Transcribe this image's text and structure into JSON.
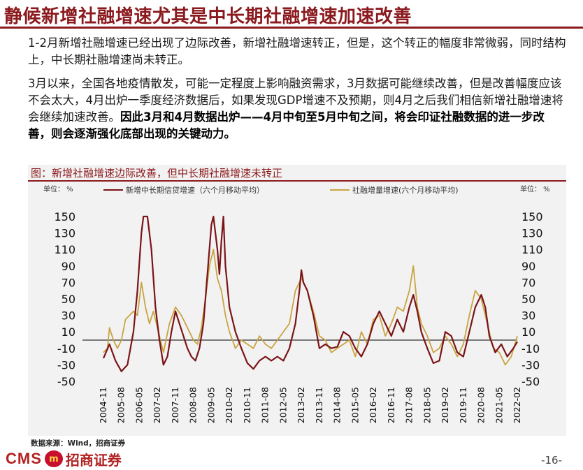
{
  "slide": {
    "title": "静候新增社融增速尤其是中长期社融增速加速改善",
    "para1": "1-2月新增社融增速已经出现了边际改善，新增社融增速转正，但是，这个转正的幅度非常微弱，同时结构上，中长期社融增速尚未转正。",
    "para2_normal": "3月以来，全国各地疫情散发，可能一定程度上影响融资需求，3月数据可能继续改善，但是改善幅度应该不会太大，4月出炉一季度经济数据后，如果发现GDP增速不及预期，则4月之后我们相信新增社融增速将会继续加速改善。",
    "para2_bold": "因此3月和4月数据出炉——4月中旬至5月中旬之间，将会印证社融数据的进一步改善，则会逐渐强化底部出现的关键动力。",
    "chart_caption": "图：新增社融增速边际改善，但中长期社融增速未转正",
    "source": "数据来源：Wind，招商证券",
    "logo_cms": "CMS",
    "logo_badge": "m",
    "logo_cn": "招商证券",
    "page_number": "-16-"
  },
  "chart_data": {
    "type": "line",
    "unit_left": "单位： %",
    "unit_right": "单位： %",
    "ylim": [
      -50,
      150
    ],
    "yticks": [
      -50,
      -30,
      -10,
      10,
      30,
      50,
      70,
      90,
      110,
      130,
      150
    ],
    "xlim": [
      "2004-11",
      "2022-02"
    ],
    "xticks": [
      "2004-11",
      "2005-08",
      "2006-05",
      "2007-02",
      "2007-11",
      "2008-08",
      "2009-05",
      "2010-02",
      "2010-11",
      "2011-08",
      "2012-05",
      "2013-02",
      "2013-11",
      "2014-08",
      "2015-05",
      "2016-02",
      "2016-11",
      "2017-08",
      "2018-05",
      "2019-02",
      "2019-11",
      "2020-08",
      "2021-05",
      "2022-02"
    ],
    "zero_line": true,
    "colors": {
      "series1": "#7b1418",
      "series2": "#c9a441",
      "zero": "#000000"
    },
    "series": [
      {
        "name": "新增中长期信贷增速（六个月移动平均）",
        "points": [
          [
            "2004-11",
            -22
          ],
          [
            "2005-02",
            -5
          ],
          [
            "2005-05",
            -25
          ],
          [
            "2005-08",
            -38
          ],
          [
            "2005-11",
            -30
          ],
          [
            "2006-02",
            10
          ],
          [
            "2006-04",
            60
          ],
          [
            "2006-06",
            130
          ],
          [
            "2006-07",
            150
          ],
          [
            "2006-09",
            150
          ],
          [
            "2006-11",
            110
          ],
          [
            "2007-01",
            40
          ],
          [
            "2007-03",
            0
          ],
          [
            "2007-05",
            -30
          ],
          [
            "2007-07",
            -20
          ],
          [
            "2007-09",
            10
          ],
          [
            "2007-11",
            35
          ],
          [
            "2008-01",
            20
          ],
          [
            "2008-03",
            5
          ],
          [
            "2008-05",
            -10
          ],
          [
            "2008-07",
            -20
          ],
          [
            "2008-09",
            -25
          ],
          [
            "2008-11",
            -10
          ],
          [
            "2009-01",
            20
          ],
          [
            "2009-03",
            80
          ],
          [
            "2009-05",
            140
          ],
          [
            "2009-06",
            150
          ],
          [
            "2009-08",
            110
          ],
          [
            "2009-09",
            80
          ],
          [
            "2009-10",
            120
          ],
          [
            "2009-11",
            150
          ],
          [
            "2009-12",
            90
          ],
          [
            "2010-02",
            40
          ],
          [
            "2010-05",
            10
          ],
          [
            "2010-08",
            -10
          ],
          [
            "2010-11",
            -28
          ],
          [
            "2011-02",
            -35
          ],
          [
            "2011-05",
            -25
          ],
          [
            "2011-08",
            -20
          ],
          [
            "2011-11",
            -25
          ],
          [
            "2012-02",
            -20
          ],
          [
            "2012-05",
            -25
          ],
          [
            "2012-08",
            -10
          ],
          [
            "2012-11",
            20
          ],
          [
            "2013-01",
            60
          ],
          [
            "2013-02",
            85
          ],
          [
            "2013-03",
            70
          ],
          [
            "2013-05",
            60
          ],
          [
            "2013-08",
            30
          ],
          [
            "2013-11",
            -10
          ],
          [
            "2014-02",
            -5
          ],
          [
            "2014-05",
            -10
          ],
          [
            "2014-08",
            -8
          ],
          [
            "2014-11",
            10
          ],
          [
            "2015-02",
            5
          ],
          [
            "2015-05",
            -10
          ],
          [
            "2015-08",
            -20
          ],
          [
            "2015-11",
            -5
          ],
          [
            "2016-02",
            20
          ],
          [
            "2016-05",
            35
          ],
          [
            "2016-08",
            20
          ],
          [
            "2016-11",
            5
          ],
          [
            "2017-02",
            25
          ],
          [
            "2017-05",
            10
          ],
          [
            "2017-08",
            40
          ],
          [
            "2017-10",
            55
          ],
          [
            "2017-12",
            35
          ],
          [
            "2018-02",
            10
          ],
          [
            "2018-05",
            -10
          ],
          [
            "2018-08",
            -28
          ],
          [
            "2018-11",
            -25
          ],
          [
            "2019-02",
            10
          ],
          [
            "2019-05",
            5
          ],
          [
            "2019-08",
            -15
          ],
          [
            "2019-11",
            -20
          ],
          [
            "2020-02",
            10
          ],
          [
            "2020-05",
            40
          ],
          [
            "2020-08",
            55
          ],
          [
            "2020-10",
            40
          ],
          [
            "2020-12",
            5
          ],
          [
            "2021-03",
            -15
          ],
          [
            "2021-06",
            -5
          ],
          [
            "2021-09",
            -20
          ],
          [
            "2021-12",
            -10
          ],
          [
            "2022-02",
            -2
          ]
        ]
      },
      {
        "name": "社融增量增速(六个月移动平均)",
        "points": [
          [
            "2004-11",
            -15
          ],
          [
            "2005-01",
            -10
          ],
          [
            "2005-02",
            15
          ],
          [
            "2005-04",
            0
          ],
          [
            "2005-06",
            -10
          ],
          [
            "2005-08",
            0
          ],
          [
            "2005-10",
            25
          ],
          [
            "2005-12",
            30
          ],
          [
            "2006-02",
            35
          ],
          [
            "2006-04",
            30
          ],
          [
            "2006-06",
            70
          ],
          [
            "2006-08",
            40
          ],
          [
            "2006-10",
            20
          ],
          [
            "2006-12",
            35
          ],
          [
            "2007-02",
            15
          ],
          [
            "2007-05",
            -15
          ],
          [
            "2007-08",
            20
          ],
          [
            "2007-11",
            40
          ],
          [
            "2008-02",
            30
          ],
          [
            "2008-05",
            15
          ],
          [
            "2008-08",
            0
          ],
          [
            "2008-10",
            -5
          ],
          [
            "2008-12",
            15
          ],
          [
            "2009-02",
            50
          ],
          [
            "2009-04",
            90
          ],
          [
            "2009-06",
            110
          ],
          [
            "2009-08",
            75
          ],
          [
            "2009-10",
            60
          ],
          [
            "2009-12",
            30
          ],
          [
            "2010-02",
            10
          ],
          [
            "2010-05",
            -10
          ],
          [
            "2010-08",
            0
          ],
          [
            "2010-11",
            -5
          ],
          [
            "2011-02",
            -10
          ],
          [
            "2011-05",
            5
          ],
          [
            "2011-08",
            -5
          ],
          [
            "2011-11",
            -10
          ],
          [
            "2012-02",
            0
          ],
          [
            "2012-05",
            10
          ],
          [
            "2012-08",
            20
          ],
          [
            "2012-11",
            60
          ],
          [
            "2013-02",
            75
          ],
          [
            "2013-05",
            60
          ],
          [
            "2013-08",
            35
          ],
          [
            "2013-11",
            5
          ],
          [
            "2014-02",
            0
          ],
          [
            "2014-05",
            -15
          ],
          [
            "2014-08",
            -10
          ],
          [
            "2014-11",
            -5
          ],
          [
            "2015-02",
            0
          ],
          [
            "2015-05",
            -20
          ],
          [
            "2015-08",
            10
          ],
          [
            "2015-11",
            -5
          ],
          [
            "2016-02",
            25
          ],
          [
            "2016-05",
            30
          ],
          [
            "2016-08",
            5
          ],
          [
            "2016-11",
            20
          ],
          [
            "2017-02",
            40
          ],
          [
            "2017-05",
            35
          ],
          [
            "2017-08",
            60
          ],
          [
            "2017-10",
            90
          ],
          [
            "2017-12",
            40
          ],
          [
            "2018-02",
            20
          ],
          [
            "2018-05",
            5
          ],
          [
            "2018-08",
            -15
          ],
          [
            "2018-11",
            -10
          ],
          [
            "2019-02",
            5
          ],
          [
            "2019-05",
            -5
          ],
          [
            "2019-08",
            -20
          ],
          [
            "2019-11",
            -5
          ],
          [
            "2020-02",
            30
          ],
          [
            "2020-05",
            60
          ],
          [
            "2020-08",
            50
          ],
          [
            "2020-11",
            20
          ],
          [
            "2021-02",
            -10
          ],
          [
            "2021-05",
            -15
          ],
          [
            "2021-08",
            -30
          ],
          [
            "2021-11",
            -20
          ],
          [
            "2022-02",
            5
          ]
        ]
      }
    ]
  }
}
